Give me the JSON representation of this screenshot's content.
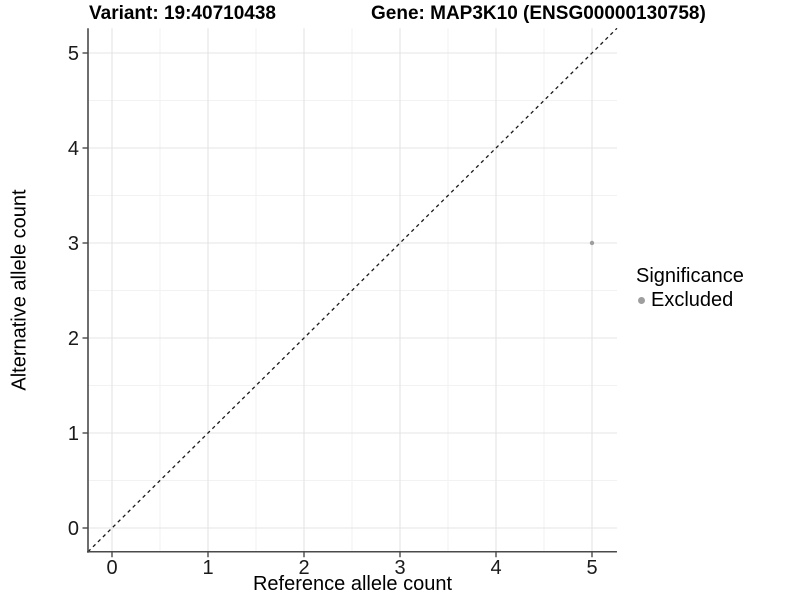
{
  "chart_data": {
    "type": "scatter",
    "titles": {
      "variant": "Variant: 19:40710438",
      "gene": "Gene: MAP3K10 (ENSG00000130758)"
    },
    "xlabel": "Reference allele count",
    "ylabel": "Alternative allele count",
    "x_ticks": [
      0,
      1,
      2,
      3,
      4,
      5
    ],
    "y_ticks": [
      0,
      1,
      2,
      3,
      4,
      5
    ],
    "xlim": [
      -0.25,
      5.26
    ],
    "ylim": [
      -0.25,
      5.26
    ],
    "grid": {
      "major": true,
      "minor": true
    },
    "points": [
      {
        "x": 5,
        "y": 3,
        "series": "Excluded"
      }
    ],
    "reference_line": {
      "type": "identity",
      "style": "dashed",
      "color": "#1a1a1a"
    },
    "legend": {
      "title": "Significance",
      "position": "right",
      "entries": [
        {
          "label": "Excluded",
          "color": "#9e9e9e"
        }
      ]
    },
    "colors": {
      "point": "#9e9e9e",
      "axis_line": "#4a4a4a",
      "grid_major": "#e4e4e4",
      "grid_minor": "#f2f2f2",
      "background": "#ffffff",
      "text": "#000000"
    }
  }
}
